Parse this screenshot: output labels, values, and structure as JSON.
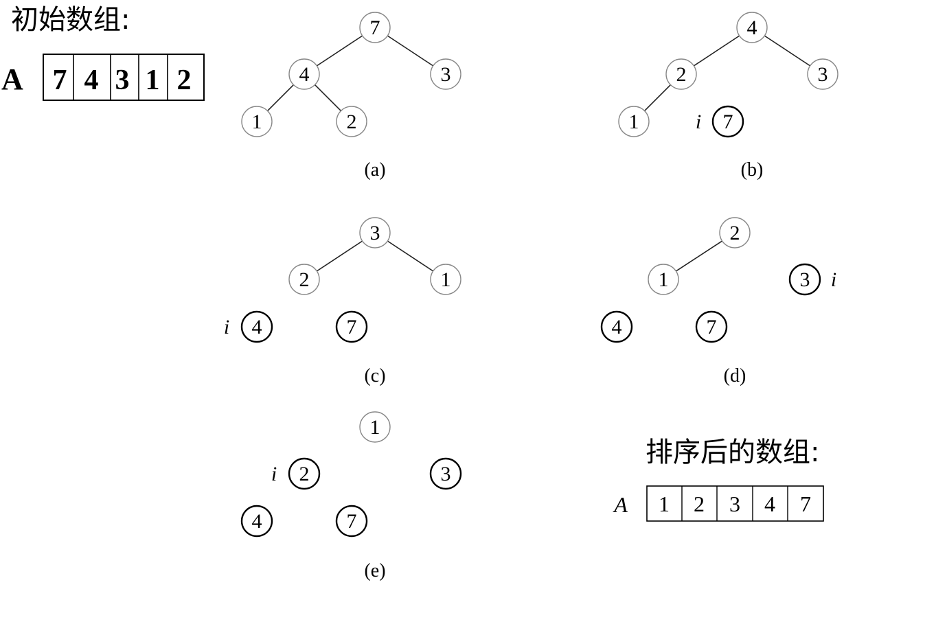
{
  "initial": {
    "title": "初始数组:",
    "array_label": "A",
    "values": [
      "7",
      "4",
      "3",
      "1",
      "2"
    ]
  },
  "sorted": {
    "title": "排序后的数组:",
    "array_label": "A",
    "values": [
      "1",
      "2",
      "3",
      "4",
      "7"
    ]
  },
  "index_marker": "i",
  "panels": [
    {
      "caption": "(a)",
      "nodes": [
        {
          "id": "a0",
          "label": "7",
          "bold": false
        },
        {
          "id": "a1",
          "label": "4",
          "bold": false
        },
        {
          "id": "a2",
          "label": "3",
          "bold": false
        },
        {
          "id": "a3",
          "label": "1",
          "bold": false
        },
        {
          "id": "a4",
          "label": "2",
          "bold": false
        }
      ],
      "edges": [
        [
          "a0",
          "a1"
        ],
        [
          "a0",
          "a2"
        ],
        [
          "a1",
          "a3"
        ],
        [
          "a1",
          "a4"
        ]
      ],
      "marker_on": null
    },
    {
      "caption": "(b)",
      "nodes": [
        {
          "id": "b0",
          "label": "4",
          "bold": false
        },
        {
          "id": "b1",
          "label": "2",
          "bold": false
        },
        {
          "id": "b2",
          "label": "3",
          "bold": false
        },
        {
          "id": "b3",
          "label": "1",
          "bold": false
        },
        {
          "id": "b4",
          "label": "7",
          "bold": true
        }
      ],
      "edges": [
        [
          "b0",
          "b1"
        ],
        [
          "b0",
          "b2"
        ],
        [
          "b1",
          "b3"
        ]
      ],
      "marker_on": "b4"
    },
    {
      "caption": "(c)",
      "nodes": [
        {
          "id": "c0",
          "label": "3",
          "bold": false
        },
        {
          "id": "c1",
          "label": "2",
          "bold": false
        },
        {
          "id": "c2",
          "label": "1",
          "bold": false
        },
        {
          "id": "c3",
          "label": "4",
          "bold": true
        },
        {
          "id": "c4",
          "label": "7",
          "bold": true
        }
      ],
      "edges": [
        [
          "c0",
          "c1"
        ],
        [
          "c0",
          "c2"
        ]
      ],
      "marker_on": "c3"
    },
    {
      "caption": "(d)",
      "nodes": [
        {
          "id": "d0",
          "label": "2",
          "bold": false
        },
        {
          "id": "d1",
          "label": "1",
          "bold": false
        },
        {
          "id": "d2",
          "label": "3",
          "bold": true
        },
        {
          "id": "d3",
          "label": "4",
          "bold": true
        },
        {
          "id": "d4",
          "label": "7",
          "bold": true
        }
      ],
      "edges": [
        [
          "d0",
          "d1"
        ]
      ],
      "marker_on": "d2"
    },
    {
      "caption": "(e)",
      "nodes": [
        {
          "id": "e0",
          "label": "1",
          "bold": false
        },
        {
          "id": "e1",
          "label": "2",
          "bold": true
        },
        {
          "id": "e2",
          "label": "3",
          "bold": true
        },
        {
          "id": "e3",
          "label": "4",
          "bold": true
        },
        {
          "id": "e4",
          "label": "7",
          "bold": true
        }
      ],
      "edges": [],
      "marker_on": "e1"
    }
  ]
}
